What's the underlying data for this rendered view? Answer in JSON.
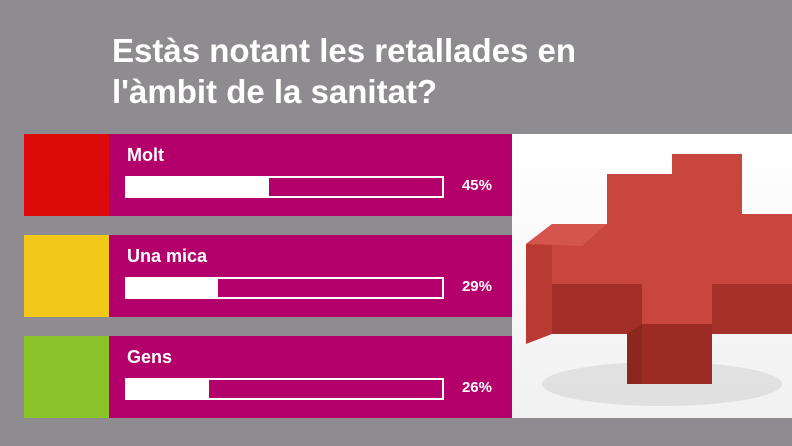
{
  "title": "Estàs notant les retallades en l'àmbit de la sanitat?",
  "colors": {
    "background": "#8e8c91",
    "row": "#b4006a",
    "bar": "#ffffff"
  },
  "chart_data": {
    "type": "bar",
    "title": "Estàs notant les retallades en l'àmbit de la sanitat?",
    "categories": [
      "Molt",
      "Una mica",
      "Gens"
    ],
    "values": [
      45,
      29,
      26
    ],
    "unit": "%",
    "ylim": [
      0,
      100
    ]
  },
  "rows": [
    {
      "label": "Molt",
      "pct": "45%",
      "value": 45,
      "color": "#dd0a0a"
    },
    {
      "label": "Una mica",
      "pct": "29%",
      "value": 29,
      "color": "#f2c919"
    },
    {
      "label": "Gens",
      "pct": "26%",
      "value": 26,
      "color": "#8bc42a"
    }
  ],
  "image": {
    "icon": "red-cross-icon"
  }
}
